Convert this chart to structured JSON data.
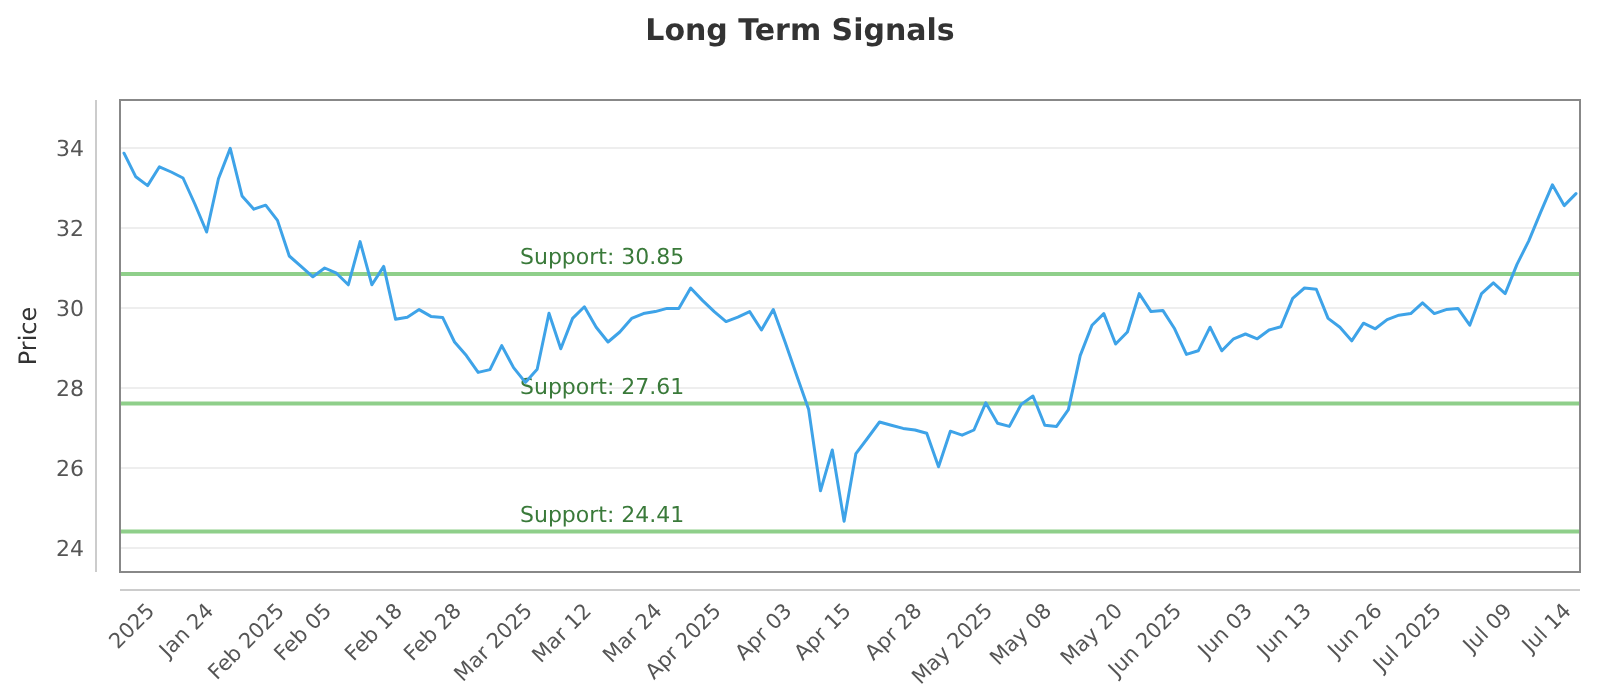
{
  "chart_data": {
    "type": "line",
    "title": "Long Term Signals",
    "ylabel": "Price",
    "categories": [
      null,
      null,
      "2025",
      null,
      null,
      null,
      null,
      "Jan 24",
      null,
      null,
      null,
      null,
      null,
      "Feb 2025",
      null,
      null,
      null,
      "Feb 05",
      null,
      null,
      null,
      null,
      null,
      "Feb 18",
      null,
      null,
      null,
      null,
      "Feb 28",
      null,
      null,
      null,
      null,
      null,
      "Mar 2025",
      null,
      null,
      null,
      null,
      "Mar 12",
      null,
      null,
      null,
      null,
      null,
      "Mar 24",
      null,
      null,
      null,
      null,
      "Apr 2025",
      null,
      null,
      null,
      null,
      null,
      "Apr 03",
      null,
      null,
      null,
      null,
      "Apr 15",
      null,
      null,
      null,
      null,
      null,
      "Apr 28",
      null,
      null,
      null,
      null,
      null,
      "May 2025",
      null,
      null,
      null,
      null,
      "May 08",
      null,
      null,
      null,
      null,
      null,
      "May 20",
      null,
      null,
      null,
      null,
      "Jun 2025",
      null,
      null,
      null,
      null,
      null,
      "Jun 03",
      null,
      null,
      null,
      null,
      "Jun 13",
      null,
      null,
      null,
      null,
      null,
      "Jun 26",
      null,
      null,
      null,
      null,
      "Jul 2025",
      null,
      null,
      null,
      null,
      null,
      "Jul 09",
      null,
      null,
      null,
      null,
      "Jul 14",
      null
    ],
    "series": [
      {
        "color": "#3ea3e8",
        "values": [
          33.87,
          33.28,
          33.06,
          33.53,
          33.4,
          33.25,
          32.6,
          31.9,
          33.23,
          33.99,
          32.8,
          32.47,
          32.57,
          32.19,
          31.3,
          31.04,
          30.78,
          31.0,
          30.87,
          30.58,
          31.66,
          30.58,
          31.04,
          29.72,
          29.77,
          29.96,
          29.79,
          29.76,
          29.15,
          28.81,
          28.39,
          28.46,
          29.06,
          28.51,
          28.14,
          28.47,
          29.87,
          28.98,
          29.74,
          30.03,
          29.52,
          29.15,
          29.4,
          29.74,
          29.86,
          29.91,
          29.99,
          29.99,
          30.5,
          30.19,
          29.91,
          29.66,
          29.77,
          29.91,
          29.45,
          29.96,
          29.15,
          28.3,
          27.46,
          25.43,
          26.45,
          24.67,
          26.36,
          26.75,
          27.15,
          27.07,
          26.99,
          26.95,
          26.87,
          26.03,
          26.92,
          26.82,
          26.95,
          27.63,
          27.12,
          27.04,
          27.59,
          27.8,
          27.07,
          27.04,
          27.46,
          28.81,
          29.57,
          29.86,
          29.1,
          29.4,
          30.36,
          29.91,
          29.94,
          29.48,
          28.84,
          28.93,
          29.52,
          28.93,
          29.23,
          29.35,
          29.23,
          29.45,
          29.53,
          30.24,
          30.5,
          30.47,
          29.74,
          29.52,
          29.18,
          29.62,
          29.48,
          29.71,
          29.82,
          29.86,
          30.13,
          29.86,
          29.96,
          29.99,
          29.57,
          30.36,
          30.63,
          30.36,
          31.09,
          31.68,
          32.39,
          33.08,
          32.56,
          32.86
        ]
      }
    ],
    "ylim": [
      23.4,
      35.2
    ],
    "yticks": [
      24,
      26,
      28,
      30,
      32,
      34
    ],
    "grid": "y",
    "marker": "none",
    "line_style": "solid",
    "ref_lines": [
      {
        "axis": "y",
        "value": 30.85,
        "label": "Support: 30.85",
        "color": "#8fcf8a"
      },
      {
        "axis": "y",
        "value": 27.61,
        "label": "Support: 27.61",
        "color": "#8fcf8a"
      },
      {
        "axis": "y",
        "value": 24.41,
        "label": "Support: 24.41",
        "color": "#8fcf8a"
      }
    ]
  }
}
